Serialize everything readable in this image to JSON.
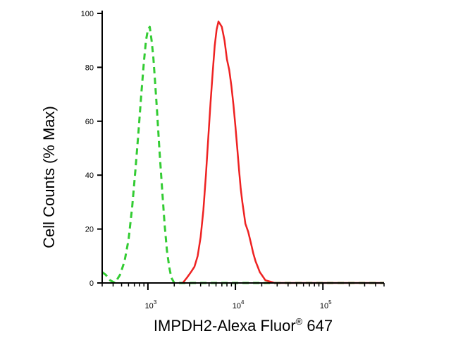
{
  "chart_data": {
    "type": "line",
    "xlabel": "IMPDH2-Alexa Fluor",
    "xlabel_super": "®",
    "xlabel_suffix": " 647",
    "ylabel": "Cell Counts (% Max)",
    "x_scale": "log",
    "xlim": [
      300,
      500000
    ],
    "ylim": [
      0,
      100
    ],
    "yticks": [
      {
        "value": 0,
        "label": "0"
      },
      {
        "value": 20,
        "label": "20"
      },
      {
        "value": 40,
        "label": "40"
      },
      {
        "value": 60,
        "label": "60"
      },
      {
        "value": 80,
        "label": "80"
      },
      {
        "value": 100,
        "label": "100"
      }
    ],
    "xticks": [
      {
        "value": 1000,
        "base": "10",
        "exp": "3"
      },
      {
        "value": 10000,
        "base": "10",
        "exp": "4"
      },
      {
        "value": 100000,
        "base": "10",
        "exp": "5"
      }
    ],
    "grid": false,
    "legend": "none",
    "series": [
      {
        "color": "#33cc33",
        "style": "dashed",
        "x": [
          300,
          330,
          370,
          420,
          480,
          540,
          600,
          660,
          720,
          780,
          840,
          900,
          950,
          1000,
          1050,
          1100,
          1150,
          1200,
          1270,
          1350,
          1450,
          1550,
          1650,
          1750,
          1850,
          2000,
          2300,
          2800,
          3500,
          5000,
          8000,
          15000,
          30000,
          60000,
          120000,
          250000,
          500000
        ],
        "y": [
          4,
          3,
          1,
          0,
          3,
          8,
          16,
          28,
          42,
          56,
          70,
          82,
          90,
          94,
          95,
          90,
          84,
          76,
          64,
          50,
          35,
          22,
          12,
          6,
          2,
          0,
          0,
          0,
          0,
          0,
          0,
          0,
          0,
          0,
          0,
          0,
          0
        ]
      },
      {
        "color": "#ee2222",
        "style": "solid",
        "x": [
          2500,
          2800,
          3100,
          3400,
          3700,
          4000,
          4300,
          4600,
          4900,
          5200,
          5500,
          5800,
          6100,
          6400,
          6700,
          7000,
          7500,
          8000,
          8500,
          9000,
          9500,
          10000,
          10500,
          11000,
          11500,
          12000,
          12500,
          13000,
          14000,
          15000,
          16000,
          17000,
          18000,
          19000,
          20000,
          22000,
          25000,
          28000,
          32000,
          500000
        ],
        "y": [
          0,
          2,
          4,
          6,
          10,
          17,
          27,
          40,
          54,
          67,
          78,
          88,
          94,
          97,
          96,
          95,
          90,
          83,
          79,
          73,
          66,
          58,
          50,
          42,
          35,
          30,
          26,
          22,
          19,
          15,
          11,
          8,
          6,
          4,
          3,
          1,
          0.5,
          0,
          0,
          0
        ]
      }
    ]
  }
}
